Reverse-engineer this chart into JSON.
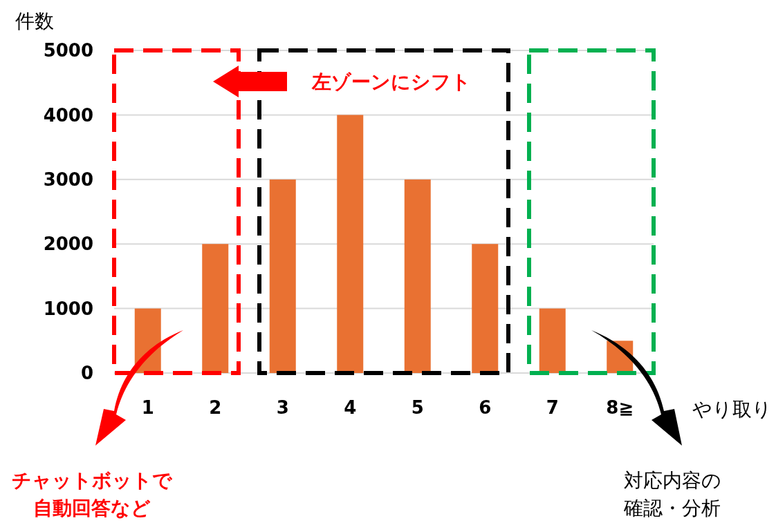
{
  "chart_data": {
    "type": "bar",
    "ylabel": "件数",
    "xlabel": "やり取り",
    "categories": [
      "1",
      "2",
      "3",
      "4",
      "5",
      "6",
      "7",
      "8≧"
    ],
    "values": [
      1000,
      2000,
      3000,
      4000,
      3000,
      2000,
      1000,
      500
    ],
    "color": "#e97132",
    "ylim": [
      0,
      5000
    ],
    "yticks": [
      0,
      1000,
      2000,
      3000,
      4000,
      5000
    ],
    "grid": "y",
    "annotations": [
      "左ゾーンにシフト",
      "チャットボットで自動回答など",
      "対応内容の確認・分析"
    ]
  }
}
